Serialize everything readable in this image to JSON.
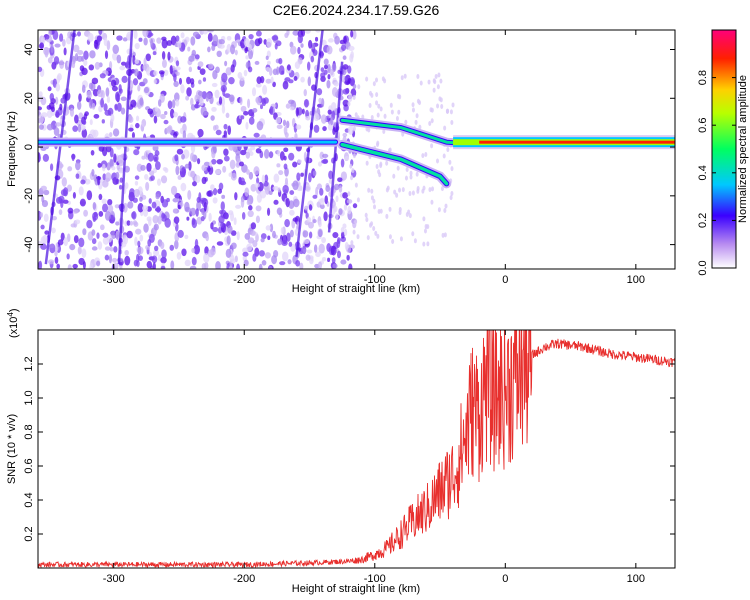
{
  "title": "C2E6.2024.234.17.59.G26",
  "chart_data": [
    {
      "type": "heatmap",
      "xlabel": "Height of straight line (km)",
      "ylabel": "Frequency (Hz)",
      "xlim": [
        -358,
        130
      ],
      "ylim": [
        -50,
        48
      ],
      "xticks": [
        -300,
        -200,
        -100,
        0,
        100
      ],
      "yticks": [
        -40,
        -20,
        0,
        20,
        40
      ],
      "colorbar": {
        "label": "Normalized spectral amplitude",
        "range": [
          0,
          1
        ],
        "ticks": [
          0.0,
          0.2,
          0.4,
          0.6,
          0.8
        ],
        "colormap": "white-violet-blue-cyan-green-yellow-red-magenta"
      },
      "features": [
        {
          "name": "main tone",
          "x": [
            -40,
            130
          ],
          "y": [
            2,
            2
          ],
          "amplitude": 0.9
        },
        {
          "name": "upper branch",
          "x": [
            -125,
            -80,
            -45,
            -20
          ],
          "y": [
            11,
            8,
            2,
            1
          ],
          "amplitude": 0.45
        },
        {
          "name": "lower branch",
          "x": [
            -125,
            -80,
            -50,
            -45
          ],
          "y": [
            1,
            -5,
            -12,
            -15
          ],
          "amplitude": 0.5
        },
        {
          "name": "low-altitude band",
          "x": [
            -358,
            -130
          ],
          "y": [
            2,
            2
          ],
          "amplitude": 0.35
        }
      ]
    },
    {
      "type": "line",
      "xlabel": "Height of straight line (km)",
      "ylabel": "SNR (10 * v/v)",
      "yscale_label": "(x10",
      "yscale_exp": "4",
      "xlim": [
        -358,
        130
      ],
      "ylim": [
        0,
        1.4
      ],
      "xticks": [
        -300,
        -200,
        -100,
        0,
        100
      ],
      "yticks": [
        0.2,
        0.4,
        0.6,
        0.8,
        1.0,
        1.2
      ],
      "color": "#e8302e",
      "x": [
        -358,
        -300,
        -250,
        -200,
        -150,
        -120,
        -110,
        -100,
        -90,
        -80,
        -70,
        -60,
        -50,
        -40,
        -35,
        -30,
        -25,
        -20,
        -15,
        -10,
        0,
        10,
        20,
        30,
        40,
        50,
        60,
        70,
        80,
        90,
        100,
        110,
        120,
        130
      ],
      "y": [
        0.02,
        0.02,
        0.02,
        0.02,
        0.03,
        0.04,
        0.05,
        0.08,
        0.12,
        0.2,
        0.28,
        0.35,
        0.45,
        0.55,
        0.65,
        0.8,
        0.95,
        0.9,
        1.1,
        1.0,
        1.05,
        1.15,
        1.25,
        1.3,
        1.32,
        1.31,
        1.3,
        1.28,
        1.26,
        1.25,
        1.24,
        1.23,
        1.22,
        1.21
      ]
    }
  ]
}
